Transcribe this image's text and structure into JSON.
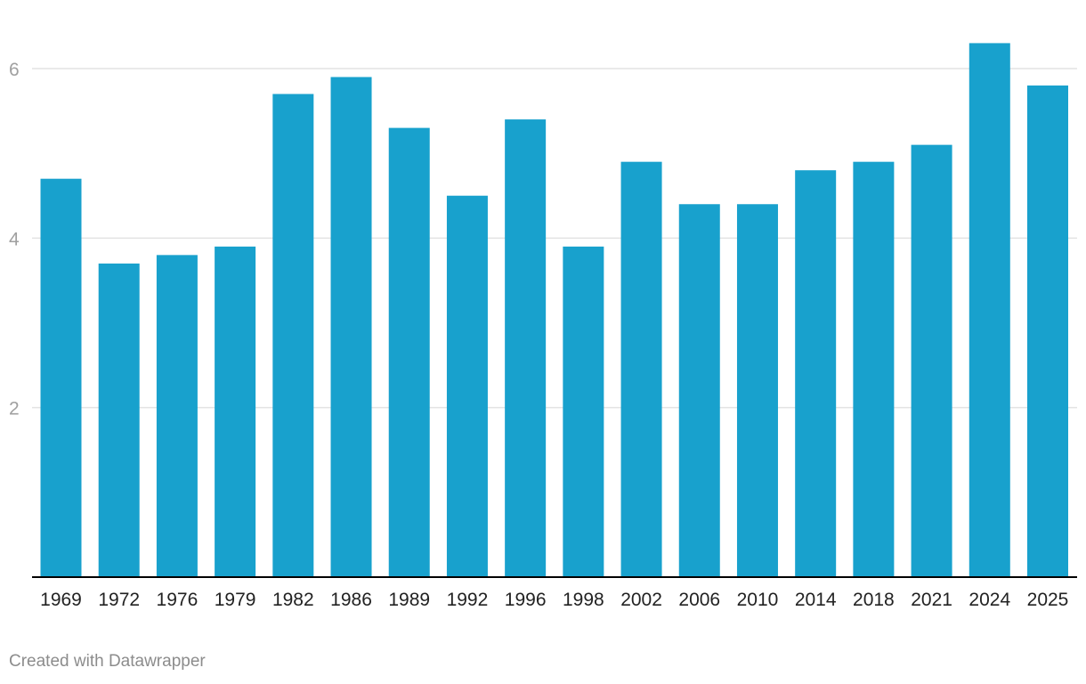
{
  "chart_data": {
    "type": "bar",
    "categories": [
      "1969",
      "1972",
      "1976",
      "1979",
      "1982",
      "1986",
      "1989",
      "1992",
      "1996",
      "1998",
      "2002",
      "2006",
      "2010",
      "2014",
      "2018",
      "2021",
      "2024",
      "2025"
    ],
    "values": [
      4.7,
      3.7,
      3.8,
      3.9,
      5.7,
      5.9,
      5.3,
      4.5,
      5.4,
      3.9,
      4.9,
      4.4,
      4.4,
      4.8,
      4.9,
      5.1,
      6.3,
      5.8
    ],
    "ylim": [
      0,
      6.5
    ],
    "yticks": [
      "2",
      "4",
      "6"
    ],
    "grid": true,
    "colors": {
      "bar": "#18a1cd",
      "grid": "#e3e3e3",
      "axis": "#000000",
      "tick_label": "#a0a0a0",
      "category_label": "#222222"
    }
  },
  "footer": {
    "credit": "Created with Datawrapper"
  }
}
